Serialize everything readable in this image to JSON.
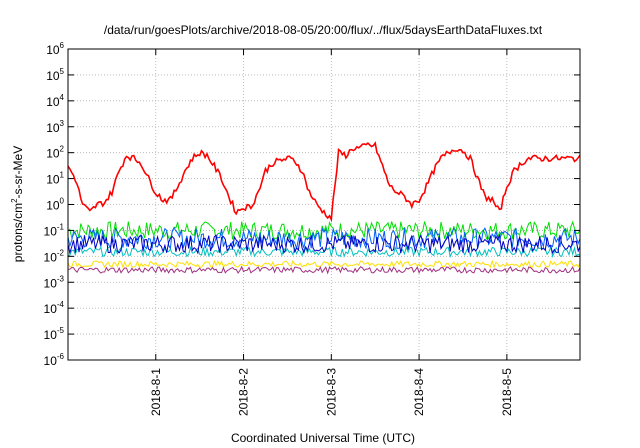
{
  "chart_data": {
    "type": "line",
    "title": "/data/run/goesPlots/archive/2018-08-05/20:00/flux/../flux/5daysEarthDataFluxes.txt",
    "xlabel": "Coordinated Universal Time (UTC)",
    "ylabel_base": "protons/cm",
    "ylabel_sup": "2",
    "ylabel_tail": "-s-sr-MeV",
    "yscale": "log",
    "ylim_exponents": [
      -6,
      6
    ],
    "y_ticks": [
      {
        "base": "10",
        "exp": "6"
      },
      {
        "base": "10",
        "exp": "5"
      },
      {
        "base": "10",
        "exp": "4"
      },
      {
        "base": "10",
        "exp": "3"
      },
      {
        "base": "10",
        "exp": "2"
      },
      {
        "base": "10",
        "exp": "1"
      },
      {
        "base": "10",
        "exp": "0"
      },
      {
        "base": "10",
        "exp": "-1"
      },
      {
        "base": "10",
        "exp": "-2"
      },
      {
        "base": "10",
        "exp": "-3"
      },
      {
        "base": "10",
        "exp": "-4"
      },
      {
        "base": "10",
        "exp": "-5"
      },
      {
        "base": "10",
        "exp": "-6"
      }
    ],
    "x_range_days": [
      "2018-07-31 00:00",
      "2018-08-05 20:00"
    ],
    "x_ticks": [
      "2018-8-1",
      "2018-8-2",
      "2018-8-3",
      "2018-8-4",
      "2018-8-5"
    ],
    "grid": true,
    "series": [
      {
        "color": "#ff0000",
        "x_hours": [
          0,
          2,
          4,
          6,
          8,
          10,
          12,
          14,
          16,
          18,
          20,
          22,
          24,
          26,
          28,
          30,
          32,
          34,
          36,
          38,
          40,
          42,
          44,
          46,
          48,
          50,
          52,
          54,
          56,
          58,
          60,
          62,
          64,
          66,
          68,
          70,
          72,
          74,
          76,
          78,
          80,
          82,
          84,
          86,
          88,
          90,
          92,
          94,
          96,
          98,
          100,
          102,
          104,
          106,
          108,
          110,
          112,
          114,
          116,
          118,
          120,
          122,
          124,
          126,
          128,
          130,
          132,
          134,
          136,
          138,
          140
        ],
        "y_values": [
          30,
          10,
          1,
          0.5,
          1.0,
          1.2,
          3,
          20,
          80,
          60,
          40,
          10,
          3,
          1.5,
          1.5,
          5,
          20,
          60,
          100,
          80,
          30,
          10,
          2,
          0.5,
          0.8,
          0.8,
          3,
          20,
          40,
          50,
          60,
          50,
          20,
          3,
          1.0,
          0.5,
          0.3,
          100,
          80,
          150,
          150,
          200,
          180,
          30,
          5,
          3,
          2,
          1.0,
          1.5,
          5,
          20,
          60,
          100,
          150,
          120,
          60,
          10,
          2,
          1.5,
          0.5,
          5,
          20,
          40,
          60,
          60,
          60,
          60,
          60,
          60,
          60,
          60
        ]
      },
      {
        "color": "#00e000",
        "level": 0.1
      },
      {
        "color": "#0060ff",
        "level": 0.05
      },
      {
        "color": "#00c0c0",
        "level": 0.015
      },
      {
        "color": "#0000c0",
        "level": 0.03
      },
      {
        "color": "#ffe000",
        "level": 0.005
      },
      {
        "color": "#a03080",
        "level": 0.003
      }
    ]
  }
}
